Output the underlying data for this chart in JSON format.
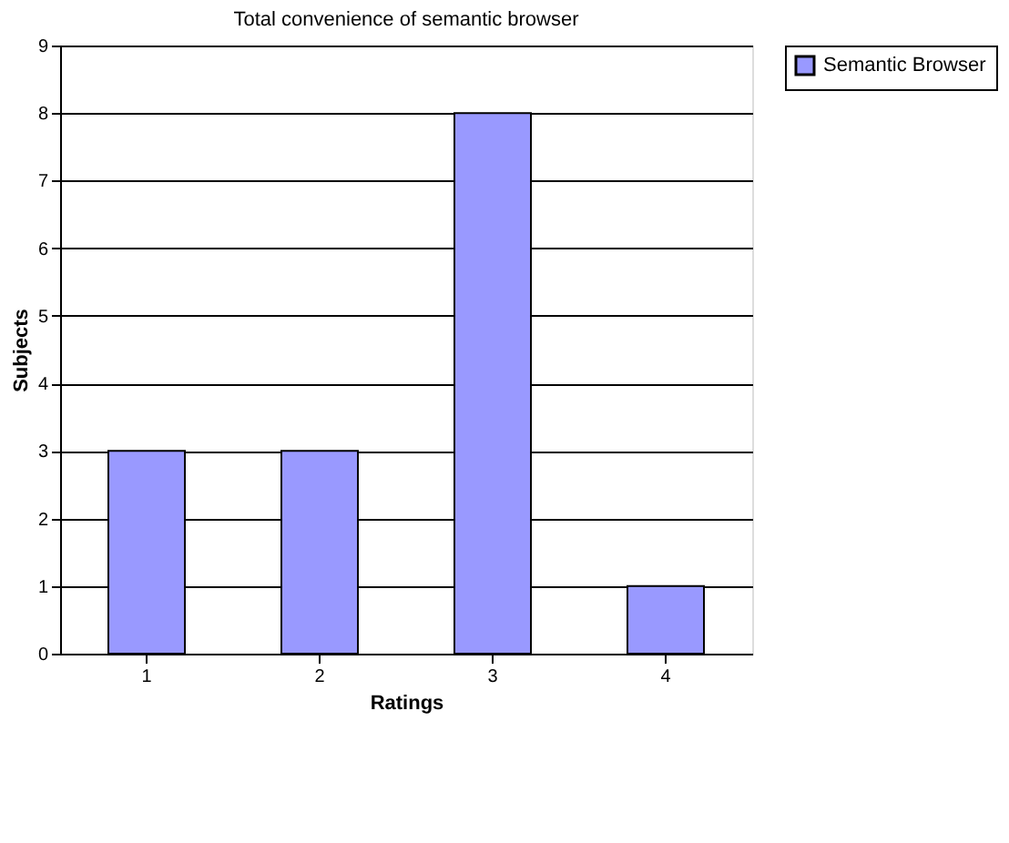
{
  "chart_data": {
    "type": "bar",
    "title": "Total convenience of semantic browser",
    "xlabel": "Ratings",
    "ylabel": "Subjects",
    "categories": [
      "1",
      "2",
      "3",
      "4"
    ],
    "series": [
      {
        "name": "Semantic Browser",
        "color": "#9999ff",
        "values": [
          3,
          3,
          8,
          1
        ]
      }
    ],
    "ylim": [
      0,
      9
    ],
    "yticks": [
      0,
      1,
      2,
      3,
      4,
      5,
      6,
      7,
      8,
      9
    ],
    "grid": "y",
    "legend": "right"
  }
}
